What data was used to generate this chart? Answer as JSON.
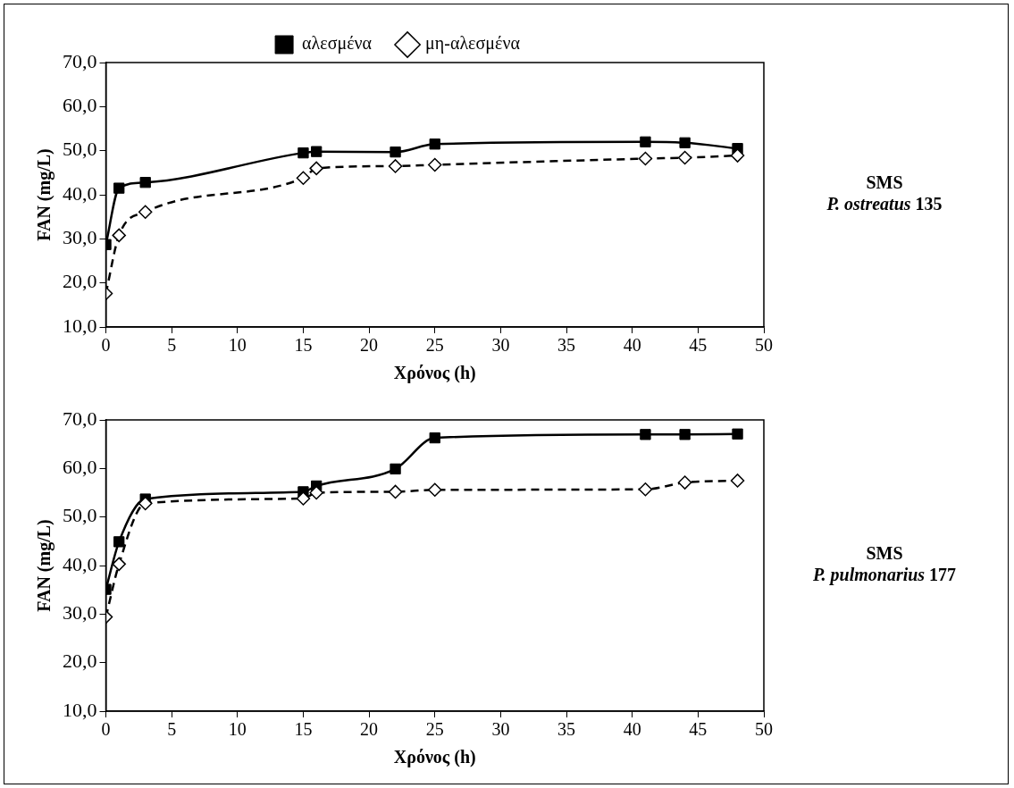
{
  "chart_data": [
    {
      "type": "line",
      "xlabel": "Χρόνος (h)",
      "ylabel": "FAN (mg/L)",
      "annotations": [
        "SMS",
        "P. ostreatus 135"
      ],
      "x": [
        0,
        1,
        3,
        15,
        16,
        22,
        25,
        41,
        44,
        48
      ],
      "series": [
        {
          "name": "αλεσμένα",
          "color": "#000000",
          "marker": "square",
          "line_style": "solid",
          "values": [
            28.7,
            41.5,
            42.8,
            49.5,
            49.8,
            49.7,
            51.5,
            52.0,
            51.8,
            50.5
          ]
        },
        {
          "name": "μη-αλεσμένα",
          "color": "#000000",
          "marker": "diamond",
          "line_style": "dashed",
          "values": [
            17.6,
            30.8,
            36.1,
            43.8,
            46.0,
            46.5,
            46.8,
            48.2,
            48.4,
            48.9
          ]
        }
      ],
      "xlim": [
        0,
        50
      ],
      "xticks": [
        0,
        5,
        10,
        15,
        20,
        25,
        30,
        35,
        40,
        45,
        50
      ],
      "ylim": [
        10,
        70
      ],
      "yticks": [
        {
          "value": 10,
          "label": "10,0"
        },
        {
          "value": 20,
          "label": "20,0"
        },
        {
          "value": 30,
          "label": "30,0"
        },
        {
          "value": 40,
          "label": "40,0"
        },
        {
          "value": 50,
          "label": "50,0"
        },
        {
          "value": 60,
          "label": "60,0"
        },
        {
          "value": 70,
          "label": "70,0"
        }
      ],
      "grid": false,
      "legend": "top"
    },
    {
      "type": "line",
      "xlabel": "Χρόνος (h)",
      "ylabel": "FAN (mg/L)",
      "annotations": [
        "SMS",
        "P. pulmonarius 177"
      ],
      "x": [
        0,
        1,
        3,
        15,
        16,
        22,
        25,
        41,
        44,
        48
      ],
      "series": [
        {
          "color": "#000000",
          "marker": "square",
          "line_style": "solid",
          "values": [
            35.1,
            44.9,
            53.7,
            55.2,
            56.4,
            59.9,
            66.3,
            67.0,
            67.0,
            67.1
          ]
        },
        {
          "color": "#000000",
          "marker": "diamond",
          "line_style": "dashed",
          "values": [
            29.4,
            40.3,
            52.8,
            53.8,
            55.0,
            55.2,
            55.6,
            55.7,
            57.1,
            57.5
          ]
        }
      ],
      "xlim": [
        0,
        50
      ],
      "xticks": [
        0,
        5,
        10,
        15,
        20,
        25,
        30,
        35,
        40,
        45,
        50
      ],
      "ylim": [
        10,
        70
      ],
      "yticks": [
        {
          "value": 10,
          "label": "10,0"
        },
        {
          "value": 20,
          "label": "20,0"
        },
        {
          "value": 30,
          "label": "30,0"
        },
        {
          "value": 40,
          "label": "40,0"
        },
        {
          "value": 50,
          "label": "50,0"
        },
        {
          "value": 60,
          "label": "60,0"
        },
        {
          "value": 70,
          "label": "70,0"
        }
      ],
      "grid": false,
      "legend": false
    }
  ]
}
